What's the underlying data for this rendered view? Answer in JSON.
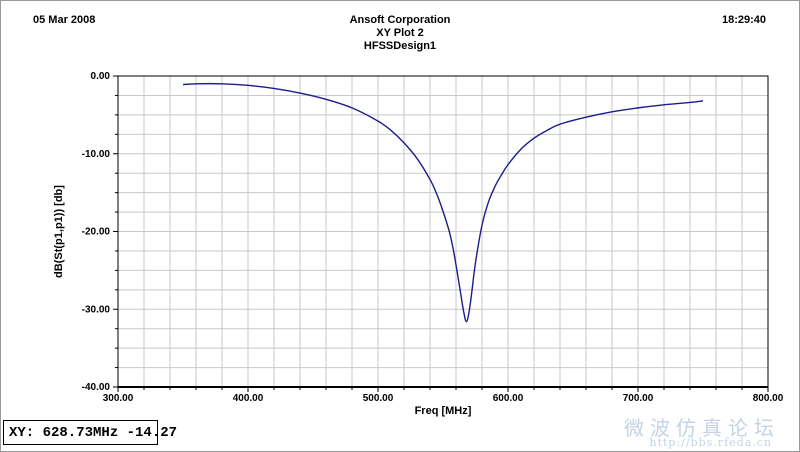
{
  "header": {
    "date": "05 Mar 2008",
    "company": "Ansoft Corporation",
    "plot_name": "XY Plot 2",
    "design": "HFSSDesign1",
    "time": "18:29:40"
  },
  "readout": "XY: 628.73MHz -14.27",
  "watermark": {
    "text": "微波仿真论坛",
    "url": "http://bbs.rfeda.cn"
  },
  "chart_data": {
    "type": "line",
    "title": "XY Plot 2",
    "xlabel": "Freq [MHz]",
    "ylabel": "dB(St(p1,p1)) [db]",
    "xlim": [
      300,
      800
    ],
    "ylim": [
      -40,
      0
    ],
    "x_ticks": [
      300,
      400,
      500,
      600,
      700,
      800
    ],
    "x_tick_labels": [
      "300.00",
      "400.00",
      "500.00",
      "600.00",
      "700.00",
      "800.00"
    ],
    "y_ticks": [
      0,
      -10,
      -20,
      -30,
      -40
    ],
    "y_tick_labels": [
      "0.00",
      "-10.00",
      "-20.00",
      "-30.00",
      "-40.00"
    ],
    "grid": true,
    "line_color": "#1c1c8c",
    "series": [
      {
        "x": [
          350,
          360,
          380,
          400,
          420,
          440,
          460,
          480,
          500,
          510,
          520,
          530,
          540,
          545,
          550,
          555,
          558,
          561,
          564,
          566,
          568,
          570,
          572,
          575,
          580,
          585,
          590,
          595,
          600,
          610,
          620,
          630,
          640,
          660,
          680,
          700,
          720,
          740,
          750
        ],
        "y": [
          -1.1,
          -1.0,
          -1.0,
          -1.2,
          -1.6,
          -2.2,
          -3.0,
          -4.1,
          -5.8,
          -7.0,
          -8.6,
          -10.6,
          -13.3,
          -15.1,
          -17.4,
          -20.1,
          -22.4,
          -25.3,
          -28.4,
          -30.4,
          -31.6,
          -30.4,
          -28.0,
          -24.0,
          -19.2,
          -16.2,
          -14.2,
          -12.7,
          -11.4,
          -9.4,
          -8.0,
          -7.0,
          -6.2,
          -5.3,
          -4.6,
          -4.1,
          -3.7,
          -3.4,
          -3.2
        ]
      }
    ]
  }
}
